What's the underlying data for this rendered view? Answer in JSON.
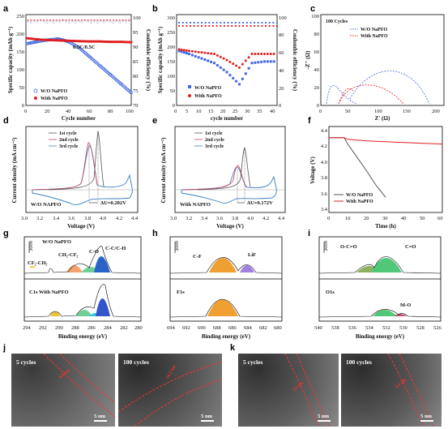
{
  "panel_letters": [
    "a",
    "b",
    "c",
    "d",
    "e",
    "f",
    "g",
    "h",
    "i",
    "j",
    "k"
  ],
  "colors": {
    "wo": "#4169e1",
    "with": "#e02020",
    "d1": "#555555",
    "d2": "#cc4060",
    "d3": "#3a7fc1"
  },
  "chart_data": [
    {
      "panel": "a",
      "type": "scatter",
      "xlabel": "Cycle number",
      "ylabel": "Specific capacity (mAh g⁻¹)",
      "y2label": "Coulombic efficiency (%)",
      "xticks": [
        "0",
        "20",
        "40",
        "60",
        "80",
        "100"
      ],
      "yticks": [
        "0",
        "50",
        "100",
        "150",
        "200",
        "250"
      ],
      "y2ticks": [
        "70",
        "75",
        "80",
        "85",
        "90",
        "95",
        "100"
      ],
      "annotation": "0.5C/0.5C",
      "legend": [
        "W/O NaPFO",
        "With NaPFO"
      ],
      "series": [
        {
          "name": "W/O NaPFO",
          "x": [
            1,
            10,
            20,
            30,
            35,
            40,
            50,
            60,
            70,
            80,
            90,
            100
          ],
          "y": [
            170,
            175,
            180,
            183,
            180,
            176,
            160,
            135,
            110,
            85,
            60,
            35
          ]
        },
        {
          "name": "With NaPFO",
          "x": [
            1,
            10,
            20,
            30,
            40,
            50,
            60,
            70,
            80,
            90,
            100
          ],
          "y": [
            185,
            182,
            180,
            179,
            178,
            177,
            176,
            176,
            175,
            175,
            174
          ]
        }
      ]
    },
    {
      "panel": "b",
      "type": "scatter",
      "xlabel": "cycle number",
      "ylabel": "Specific capacity (mAh g⁻¹)",
      "y2label": "Coulombic efficiency (%)",
      "xticks": [
        "0",
        "5",
        "10",
        "15",
        "20",
        "25",
        "30",
        "35",
        "40"
      ],
      "yticks": [
        "0",
        "50",
        "100",
        "150",
        "200",
        "250",
        "300"
      ],
      "y2ticks": [
        "0",
        "20",
        "40",
        "60",
        "80",
        "100"
      ],
      "legend": [
        "W/O NaPFO",
        "With NaPFO"
      ],
      "series": [
        {
          "name": "W/O NaPFO",
          "x": [
            1,
            5,
            10,
            15,
            20,
            25,
            30,
            35,
            40
          ],
          "y": [
            180,
            170,
            155,
            140,
            110,
            70,
            140,
            145,
            145
          ]
        },
        {
          "name": "With NaPFO",
          "x": [
            1,
            5,
            10,
            15,
            20,
            25,
            30,
            35,
            40
          ],
          "y": [
            185,
            180,
            175,
            170,
            150,
            125,
            170,
            170,
            170
          ]
        }
      ]
    },
    {
      "panel": "c",
      "type": "line",
      "xlabel": "Z' (Ω)",
      "ylabel": "-Z'' (Ω)",
      "title": "100 Cycles",
      "xticks": [
        "0",
        "50",
        "100",
        "150",
        "200"
      ],
      "yticks": [
        "0",
        "20",
        "40",
        "60",
        "80",
        "100"
      ],
      "legend": [
        "W/O NaPFO",
        "With NaPFO"
      ]
    },
    {
      "panel": "d",
      "type": "line",
      "xlabel": "Voltage (V)",
      "ylabel": "Current density (mA cm⁻²)",
      "xticks": [
        "3.0",
        "3.2",
        "3.4",
        "3.6",
        "3.8",
        "4.0",
        "4.2",
        "4.4"
      ],
      "legend": [
        "1st cycle",
        "2nd cycle",
        "3rd cycle"
      ],
      "annotation": "ΔU=0.202V",
      "label": "W/O NAPFO"
    },
    {
      "panel": "e",
      "type": "line",
      "xlabel": "Voltage (V)",
      "ylabel": "Current density (mA cm⁻²)",
      "xticks": [
        "3.0",
        "3.2",
        "3.4",
        "3.6",
        "3.8",
        "4.0",
        "4.2",
        "4.4"
      ],
      "legend": [
        "1st cycle",
        "2nd cycle",
        "3rd cycle"
      ],
      "annotation": "ΔU=0.172V",
      "label": "With NAPFO"
    },
    {
      "panel": "f",
      "type": "line",
      "xlabel": "Time (h)",
      "ylabel": "Voltage (V)",
      "xticks": [
        "0",
        "10",
        "20",
        "30",
        "40",
        "50",
        "60"
      ],
      "yticks": [
        "3.4",
        "3.6",
        "3.8",
        "4.0",
        "4.2",
        "4.4"
      ],
      "legend": [
        "W/O NaPFO",
        "With NaPFO"
      ],
      "series": [
        {
          "name": "W/O NaPFO",
          "x": [
            0,
            8,
            10,
            15,
            20,
            25,
            30
          ],
          "y": [
            4.3,
            4.3,
            4.22,
            4.05,
            3.88,
            3.7,
            3.55
          ]
        },
        {
          "name": "With NaPFO",
          "x": [
            0,
            8,
            10,
            20,
            30,
            40,
            50,
            60
          ],
          "y": [
            4.3,
            4.3,
            4.28,
            4.26,
            4.25,
            4.24,
            4.23,
            4.22
          ]
        }
      ]
    },
    {
      "panel": "g",
      "type": "line",
      "xlabel": "Binding energy (eV)",
      "xticks": [
        "294",
        "292",
        "290",
        "288",
        "286",
        "284",
        "282",
        "280"
      ],
      "scale": "3000",
      "top_label": "W/O NaPFO",
      "bottom_label": "C1s   With NaPFO",
      "peaks": [
        "CF₂-CH₂",
        "CH₂-CF₂",
        "C-O",
        "C-C/C-H"
      ]
    },
    {
      "panel": "h",
      "type": "line",
      "xlabel": "Binding energy (eV)",
      "xticks": [
        "694",
        "692",
        "690",
        "688",
        "686",
        "684",
        "682",
        "680"
      ],
      "scale": "3000",
      "bottom_label": "F1s",
      "peaks": [
        "C-F",
        "LiF"
      ]
    },
    {
      "panel": "i",
      "type": "line",
      "xlabel": "Binding energy (eV)",
      "xticks": [
        "540",
        "538",
        "536",
        "534",
        "532",
        "530",
        "528",
        "526"
      ],
      "scale": "3000",
      "bottom_label": "O1s",
      "peaks": [
        "O-C=O",
        "C=O",
        "M-O"
      ]
    }
  ],
  "tem": {
    "j_left": "5 cycles",
    "j_right": "100 cycles",
    "k_left": "5 cycles",
    "k_right": "100 cycles",
    "scale": "5 nm",
    "j_left_thick": "6.8 nm",
    "j_right_thick": "14.2 nm",
    "k_left_thick": "3.9 nm",
    "k_right_thick": "4.1 nm"
  }
}
